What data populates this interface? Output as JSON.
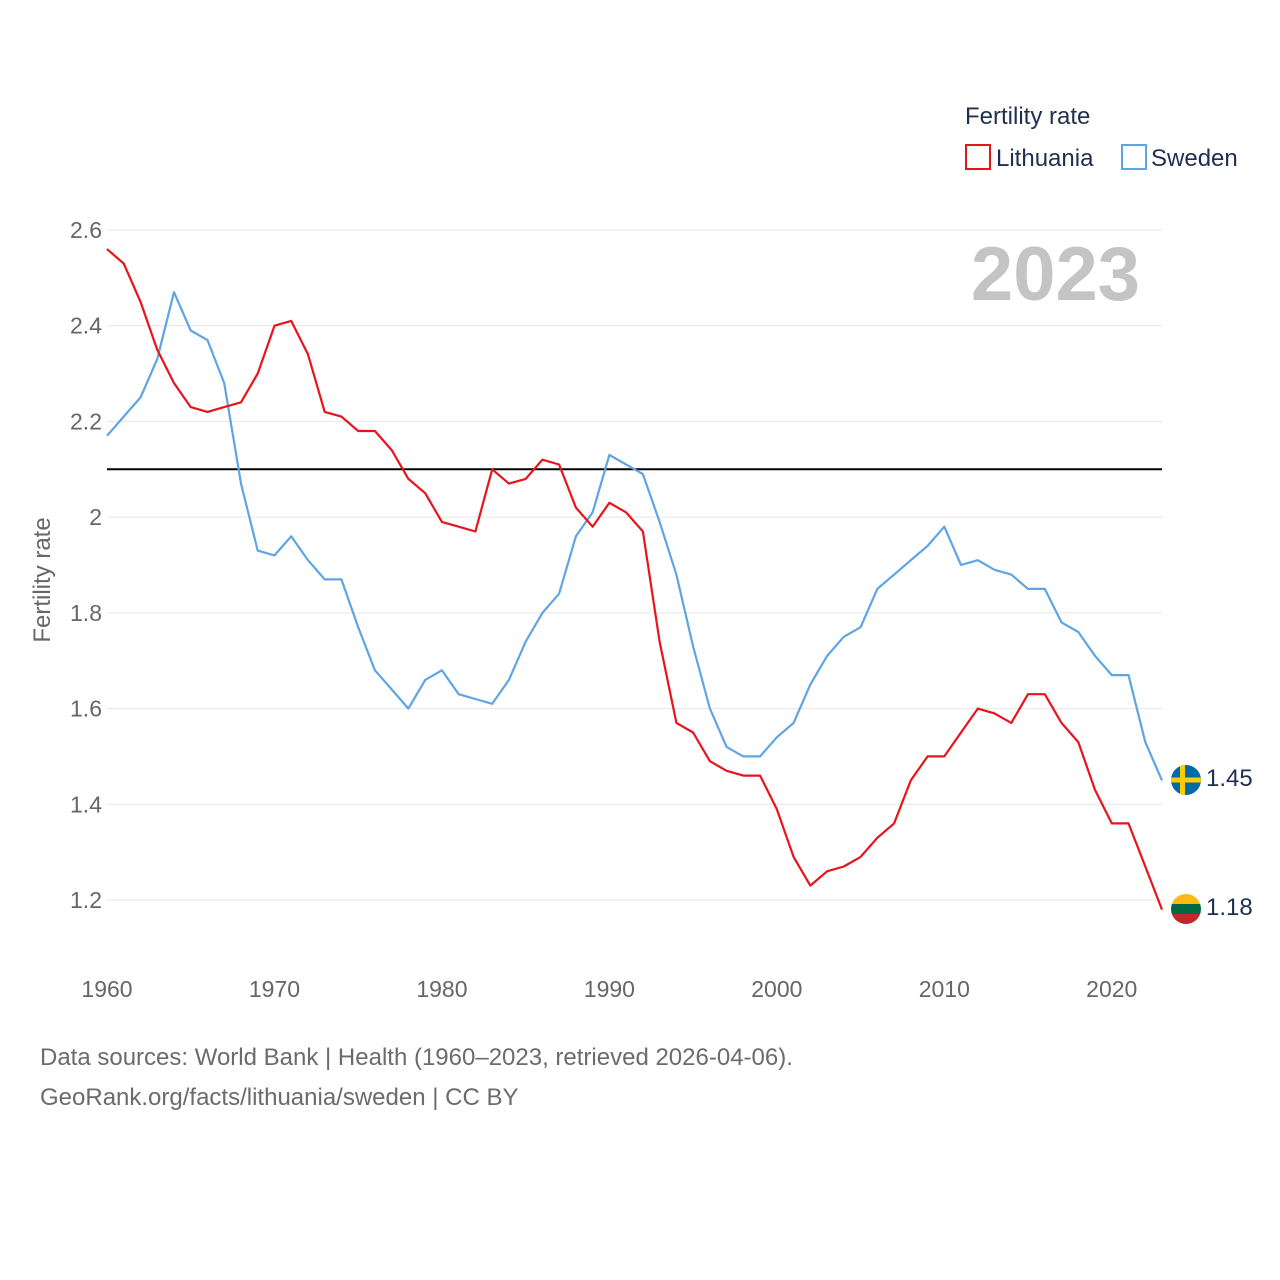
{
  "chart_data": {
    "type": "line",
    "ylabel": "Fertility rate",
    "legend_title": "Fertility rate",
    "year_label": "2023",
    "x": [
      1960,
      1961,
      1962,
      1963,
      1964,
      1965,
      1966,
      1967,
      1968,
      1969,
      1970,
      1971,
      1972,
      1973,
      1974,
      1975,
      1976,
      1977,
      1978,
      1979,
      1980,
      1981,
      1982,
      1983,
      1984,
      1985,
      1986,
      1987,
      1988,
      1989,
      1990,
      1991,
      1992,
      1993,
      1994,
      1995,
      1996,
      1997,
      1998,
      1999,
      2000,
      2001,
      2002,
      2003,
      2004,
      2005,
      2006,
      2007,
      2008,
      2009,
      2010,
      2011,
      2012,
      2013,
      2014,
      2015,
      2016,
      2017,
      2018,
      2019,
      2020,
      2021,
      2022,
      2023
    ],
    "series": [
      {
        "name": "Lithuania",
        "color": "#e8141c",
        "end_label": "1.18",
        "values": [
          2.56,
          2.53,
          2.45,
          2.35,
          2.28,
          2.23,
          2.22,
          2.23,
          2.24,
          2.3,
          2.4,
          2.41,
          2.34,
          2.22,
          2.21,
          2.18,
          2.18,
          2.14,
          2.08,
          2.05,
          1.99,
          1.98,
          1.97,
          2.1,
          2.07,
          2.08,
          2.12,
          2.11,
          2.02,
          1.98,
          2.03,
          2.01,
          1.97,
          1.74,
          1.57,
          1.55,
          1.49,
          1.47,
          1.46,
          1.46,
          1.39,
          1.29,
          1.23,
          1.26,
          1.27,
          1.29,
          1.33,
          1.36,
          1.45,
          1.5,
          1.5,
          1.55,
          1.6,
          1.59,
          1.57,
          1.63,
          1.63,
          1.57,
          1.53,
          1.43,
          1.36,
          1.36,
          1.27,
          1.18
        ]
      },
      {
        "name": "Sweden",
        "color": "#5fa4e4",
        "end_label": "1.45",
        "values": [
          2.17,
          2.21,
          2.25,
          2.33,
          2.47,
          2.39,
          2.37,
          2.28,
          2.07,
          1.93,
          1.92,
          1.96,
          1.91,
          1.87,
          1.87,
          1.77,
          1.68,
          1.64,
          1.6,
          1.66,
          1.68,
          1.63,
          1.62,
          1.61,
          1.66,
          1.74,
          1.8,
          1.84,
          1.96,
          2.01,
          2.13,
          2.11,
          2.09,
          1.99,
          1.88,
          1.73,
          1.6,
          1.52,
          1.5,
          1.5,
          1.54,
          1.57,
          1.65,
          1.71,
          1.75,
          1.77,
          1.85,
          1.88,
          1.91,
          1.94,
          1.98,
          1.9,
          1.91,
          1.89,
          1.88,
          1.85,
          1.85,
          1.78,
          1.76,
          1.71,
          1.67,
          1.67,
          1.53,
          1.45
        ]
      }
    ],
    "reference_line": 2.1,
    "xlim": [
      1960,
      2023
    ],
    "ylim": [
      1.1,
      2.6
    ],
    "x_ticks": [
      "1960",
      "1970",
      "1980",
      "1990",
      "2000",
      "2010",
      "2020"
    ],
    "x_tick_values": [
      1960,
      1970,
      1980,
      1990,
      2000,
      2010,
      2020
    ],
    "y_ticks": [
      "1.2",
      "1.4",
      "1.6",
      "1.8",
      "2",
      "2.2",
      "2.4",
      "2.6"
    ],
    "y_tick_values": [
      1.2,
      1.4,
      1.6,
      1.8,
      2.0,
      2.2,
      2.4,
      2.6
    ],
    "grid": true,
    "legend_position": "top-right"
  },
  "flags": {
    "lithuania": [
      "#fdb913",
      "#006a44",
      "#c1272d"
    ],
    "sweden": {
      "field": "#006aa7",
      "cross": "#fecc00"
    }
  },
  "footer": {
    "sources": "Data sources: World Bank | Health (1960–2023, retrieved 2026-04-06).",
    "credit": "GeoRank.org/facts/lithuania/sweden | CC BY"
  }
}
